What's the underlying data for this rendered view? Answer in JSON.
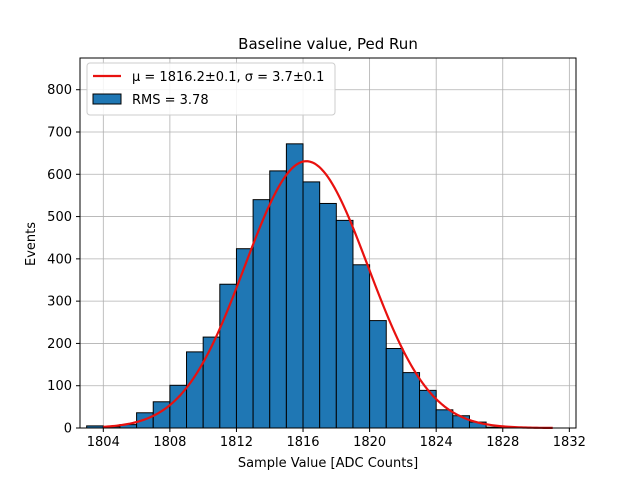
{
  "chart_data": {
    "type": "bar",
    "title": "Baseline value, Ped Run",
    "xlabel": "Sample Value [ADC Counts]",
    "ylabel": "Events",
    "xlim": [
      1802.6,
      1832.4
    ],
    "ylim": [
      0,
      875
    ],
    "xticks": [
      1804,
      1808,
      1812,
      1816,
      1820,
      1824,
      1828,
      1832
    ],
    "yticks": [
      0,
      100,
      200,
      300,
      400,
      500,
      600,
      700,
      800
    ],
    "grid": true,
    "legend_position": "top-left",
    "colors": {
      "bars": "#1f77b4",
      "bar_edge": "#000000",
      "fit": "#e8110f",
      "grid": "#b0b0b0"
    },
    "series": [
      {
        "name": "RMS = 3.78",
        "kind": "histogram",
        "bin_width": 1,
        "bins": [
          {
            "x": 1803.5,
            "value": 5
          },
          {
            "x": 1804.5,
            "value": 3
          },
          {
            "x": 1805.5,
            "value": 8
          },
          {
            "x": 1806.5,
            "value": 36
          },
          {
            "x": 1807.5,
            "value": 62
          },
          {
            "x": 1808.5,
            "value": 101
          },
          {
            "x": 1809.5,
            "value": 180
          },
          {
            "x": 1810.5,
            "value": 215
          },
          {
            "x": 1811.5,
            "value": 340
          },
          {
            "x": 1812.5,
            "value": 424
          },
          {
            "x": 1813.5,
            "value": 540
          },
          {
            "x": 1814.5,
            "value": 608
          },
          {
            "x": 1815.5,
            "value": 672
          },
          {
            "x": 1816.5,
            "value": 582
          },
          {
            "x": 1817.5,
            "value": 531
          },
          {
            "x": 1818.5,
            "value": 491
          },
          {
            "x": 1819.5,
            "value": 386
          },
          {
            "x": 1820.5,
            "value": 254
          },
          {
            "x": 1821.5,
            "value": 188
          },
          {
            "x": 1822.5,
            "value": 131
          },
          {
            "x": 1823.5,
            "value": 89
          },
          {
            "x": 1824.5,
            "value": 43
          },
          {
            "x": 1825.5,
            "value": 29
          },
          {
            "x": 1826.5,
            "value": 14
          },
          {
            "x": 1827.5,
            "value": 2
          },
          {
            "x": 1828.5,
            "value": 1
          }
        ]
      },
      {
        "name": "μ = 1816.2±0.1, σ = 3.7±0.1",
        "kind": "gaussian_fit",
        "mu": 1816.2,
        "sigma": 3.7,
        "amplitude": 631,
        "x_range": [
          1804,
          1831
        ]
      }
    ]
  }
}
